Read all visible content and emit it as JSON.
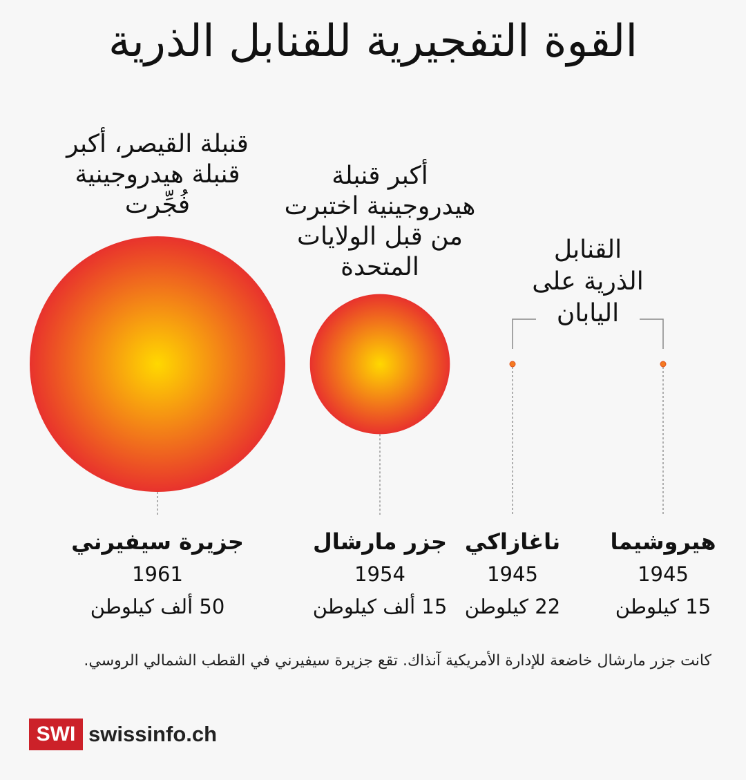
{
  "title": "القوة التفجيرية للقنابل الذرية",
  "colors": {
    "center": "#ffd800",
    "edge": "#e8322d",
    "dot": "#f47a20",
    "guide": "#888888"
  },
  "chart_data": {
    "type": "bubble",
    "unit": "كيلوطن",
    "items": [
      {
        "place": "جزيرة سيفيرني",
        "year": "1961",
        "yield_kt": 50000,
        "yield_label": "50  ألف  كيلوطن",
        "annotation": [
          "قنبلة القيصر، أكبر",
          "قنبلة هيدروجينية",
          "فُجِّرت"
        ]
      },
      {
        "place": "جزر مارشال",
        "year": "1954",
        "yield_kt": 15000,
        "yield_label": "15 ألف  كيلوطن",
        "annotation": [
          "أكبر قنبلة",
          "هيدروجينية اختبرت",
          "من قبل الولايات",
          "المتحدة"
        ]
      },
      {
        "place": "ناغازاكي",
        "year": "1945",
        "yield_kt": 22,
        "yield_label": "22 كيلوطن"
      },
      {
        "place": "هيروشيما",
        "year": "1945",
        "yield_kt": 15,
        "yield_label": "15 كيلوطن"
      }
    ],
    "group_annotation": [
      "القنابل",
      "الذرية على",
      "اليابان"
    ]
  },
  "note": "كانت جزر مارشال خاضعة للإدارة الأمريكية آنذاك. تقع جزيرة سيفيرني في القطب الشمالي الروسي.",
  "logo": {
    "mark": "SWI",
    "name": "swissinfo.ch"
  }
}
